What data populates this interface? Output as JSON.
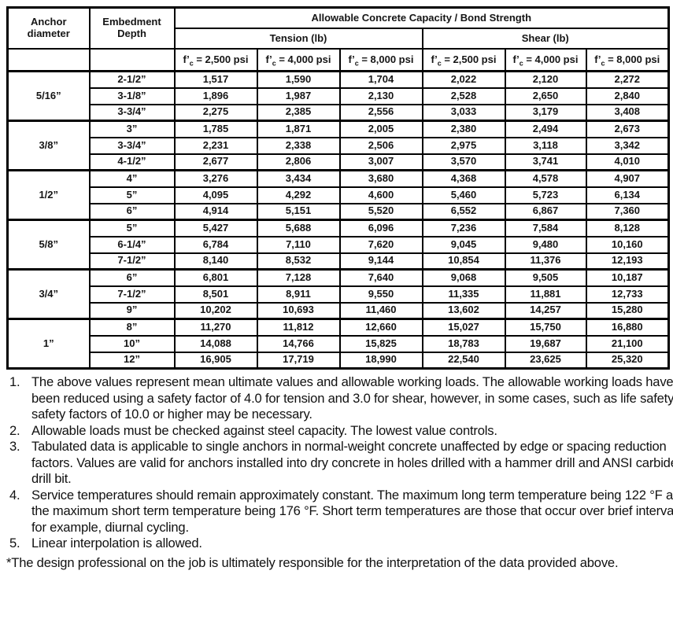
{
  "table": {
    "header": {
      "anchor_diameter": "Anchor diameter",
      "embedment_depth": "Embedment Depth",
      "capacity_title": "Allowable Concrete Capacity / Bond Strength",
      "tension": "Tension (lb)",
      "shear": "Shear (lb)",
      "fc_prefix": "f’",
      "fc_sub": "c",
      "fc_columns": [
        " = 2,500 psi",
        " = 4,000 psi",
        " = 8,000 psi",
        " = 2,500 psi",
        " = 4,000 psi",
        " = 8,000 psi"
      ]
    },
    "groups": [
      {
        "diameter": "5/16”",
        "rows": [
          {
            "depth": "2-1/2”",
            "values": [
              "1,517",
              "1,590",
              "1,704",
              "2,022",
              "2,120",
              "2,272"
            ]
          },
          {
            "depth": "3-1/8”",
            "values": [
              "1,896",
              "1,987",
              "2,130",
              "2,528",
              "2,650",
              "2,840"
            ]
          },
          {
            "depth": "3-3/4”",
            "values": [
              "2,275",
              "2,385",
              "2,556",
              "3,033",
              "3,179",
              "3,408"
            ]
          }
        ]
      },
      {
        "diameter": "3/8”",
        "rows": [
          {
            "depth": "3”",
            "values": [
              "1,785",
              "1,871",
              "2,005",
              "2,380",
              "2,494",
              "2,673"
            ]
          },
          {
            "depth": "3-3/4”",
            "values": [
              "2,231",
              "2,338",
              "2,506",
              "2,975",
              "3,118",
              "3,342"
            ]
          },
          {
            "depth": "4-1/2”",
            "values": [
              "2,677",
              "2,806",
              "3,007",
              "3,570",
              "3,741",
              "4,010"
            ]
          }
        ]
      },
      {
        "diameter": "1/2”",
        "rows": [
          {
            "depth": "4”",
            "values": [
              "3,276",
              "3,434",
              "3,680",
              "4,368",
              "4,578",
              "4,907"
            ]
          },
          {
            "depth": "5”",
            "values": [
              "4,095",
              "4,292",
              "4,600",
              "5,460",
              "5,723",
              "6,134"
            ]
          },
          {
            "depth": "6”",
            "values": [
              "4,914",
              "5,151",
              "5,520",
              "6,552",
              "6,867",
              "7,360"
            ]
          }
        ]
      },
      {
        "diameter": "5/8”",
        "rows": [
          {
            "depth": "5”",
            "values": [
              "5,427",
              "5,688",
              "6,096",
              "7,236",
              "7,584",
              "8,128"
            ]
          },
          {
            "depth": "6-1/4”",
            "values": [
              "6,784",
              "7,110",
              "7,620",
              "9,045",
              "9,480",
              "10,160"
            ]
          },
          {
            "depth": "7-1/2”",
            "values": [
              "8,140",
              "8,532",
              "9,144",
              "10,854",
              "11,376",
              "12,193"
            ]
          }
        ]
      },
      {
        "diameter": "3/4”",
        "rows": [
          {
            "depth": "6”",
            "values": [
              "6,801",
              "7,128",
              "7,640",
              "9,068",
              "9,505",
              "10,187"
            ]
          },
          {
            "depth": "7-1/2”",
            "values": [
              "8,501",
              "8,911",
              "9,550",
              "11,335",
              "11,881",
              "12,733"
            ]
          },
          {
            "depth": "9”",
            "values": [
              "10,202",
              "10,693",
              "11,460",
              "13,602",
              "14,257",
              "15,280"
            ]
          }
        ]
      },
      {
        "diameter": "1”",
        "rows": [
          {
            "depth": "8”",
            "values": [
              "11,270",
              "11,812",
              "12,660",
              "15,027",
              "15,750",
              "16,880"
            ]
          },
          {
            "depth": "10”",
            "values": [
              "14,088",
              "14,766",
              "15,825",
              "18,783",
              "19,687",
              "21,100"
            ]
          },
          {
            "depth": "12”",
            "values": [
              "16,905",
              "17,719",
              "18,990",
              "22,540",
              "23,625",
              "25,320"
            ]
          }
        ]
      }
    ]
  },
  "footnotes": {
    "items": [
      {
        "num": "1.",
        "text": "The above values represent mean ultimate values and allowable working loads. The allowable working loads have been reduced using a safety factor of 4.0 for tension and 3.0 for shear, however, in some cases, such as life safety, safety factors of 10.0 or higher may be necessary."
      },
      {
        "num": "2.",
        "text": "Allowable loads must be checked against steel capacity. The lowest value controls."
      },
      {
        "num": "3.",
        "text": "Tabulated data is applicable to single anchors in normal-weight concrete unaffected by edge or spacing reduction factors. Values are valid for anchors installed into dry concrete in holes drilled with a hammer drill and ANSI carbide drill bit."
      },
      {
        "num": "4.",
        "text": "Service temperatures should remain approximately constant. The maximum long term temperature being 122 °F and the maximum short term temperature being 176 °F. Short term temperatures are those that occur over brief intervals, for example, diurnal cycling."
      },
      {
        "num": "5.",
        "text": "Linear interpolation is allowed."
      }
    ],
    "disclaimer": "*The design professional on the job is ultimately responsible for the interpretation of the data provided above."
  }
}
